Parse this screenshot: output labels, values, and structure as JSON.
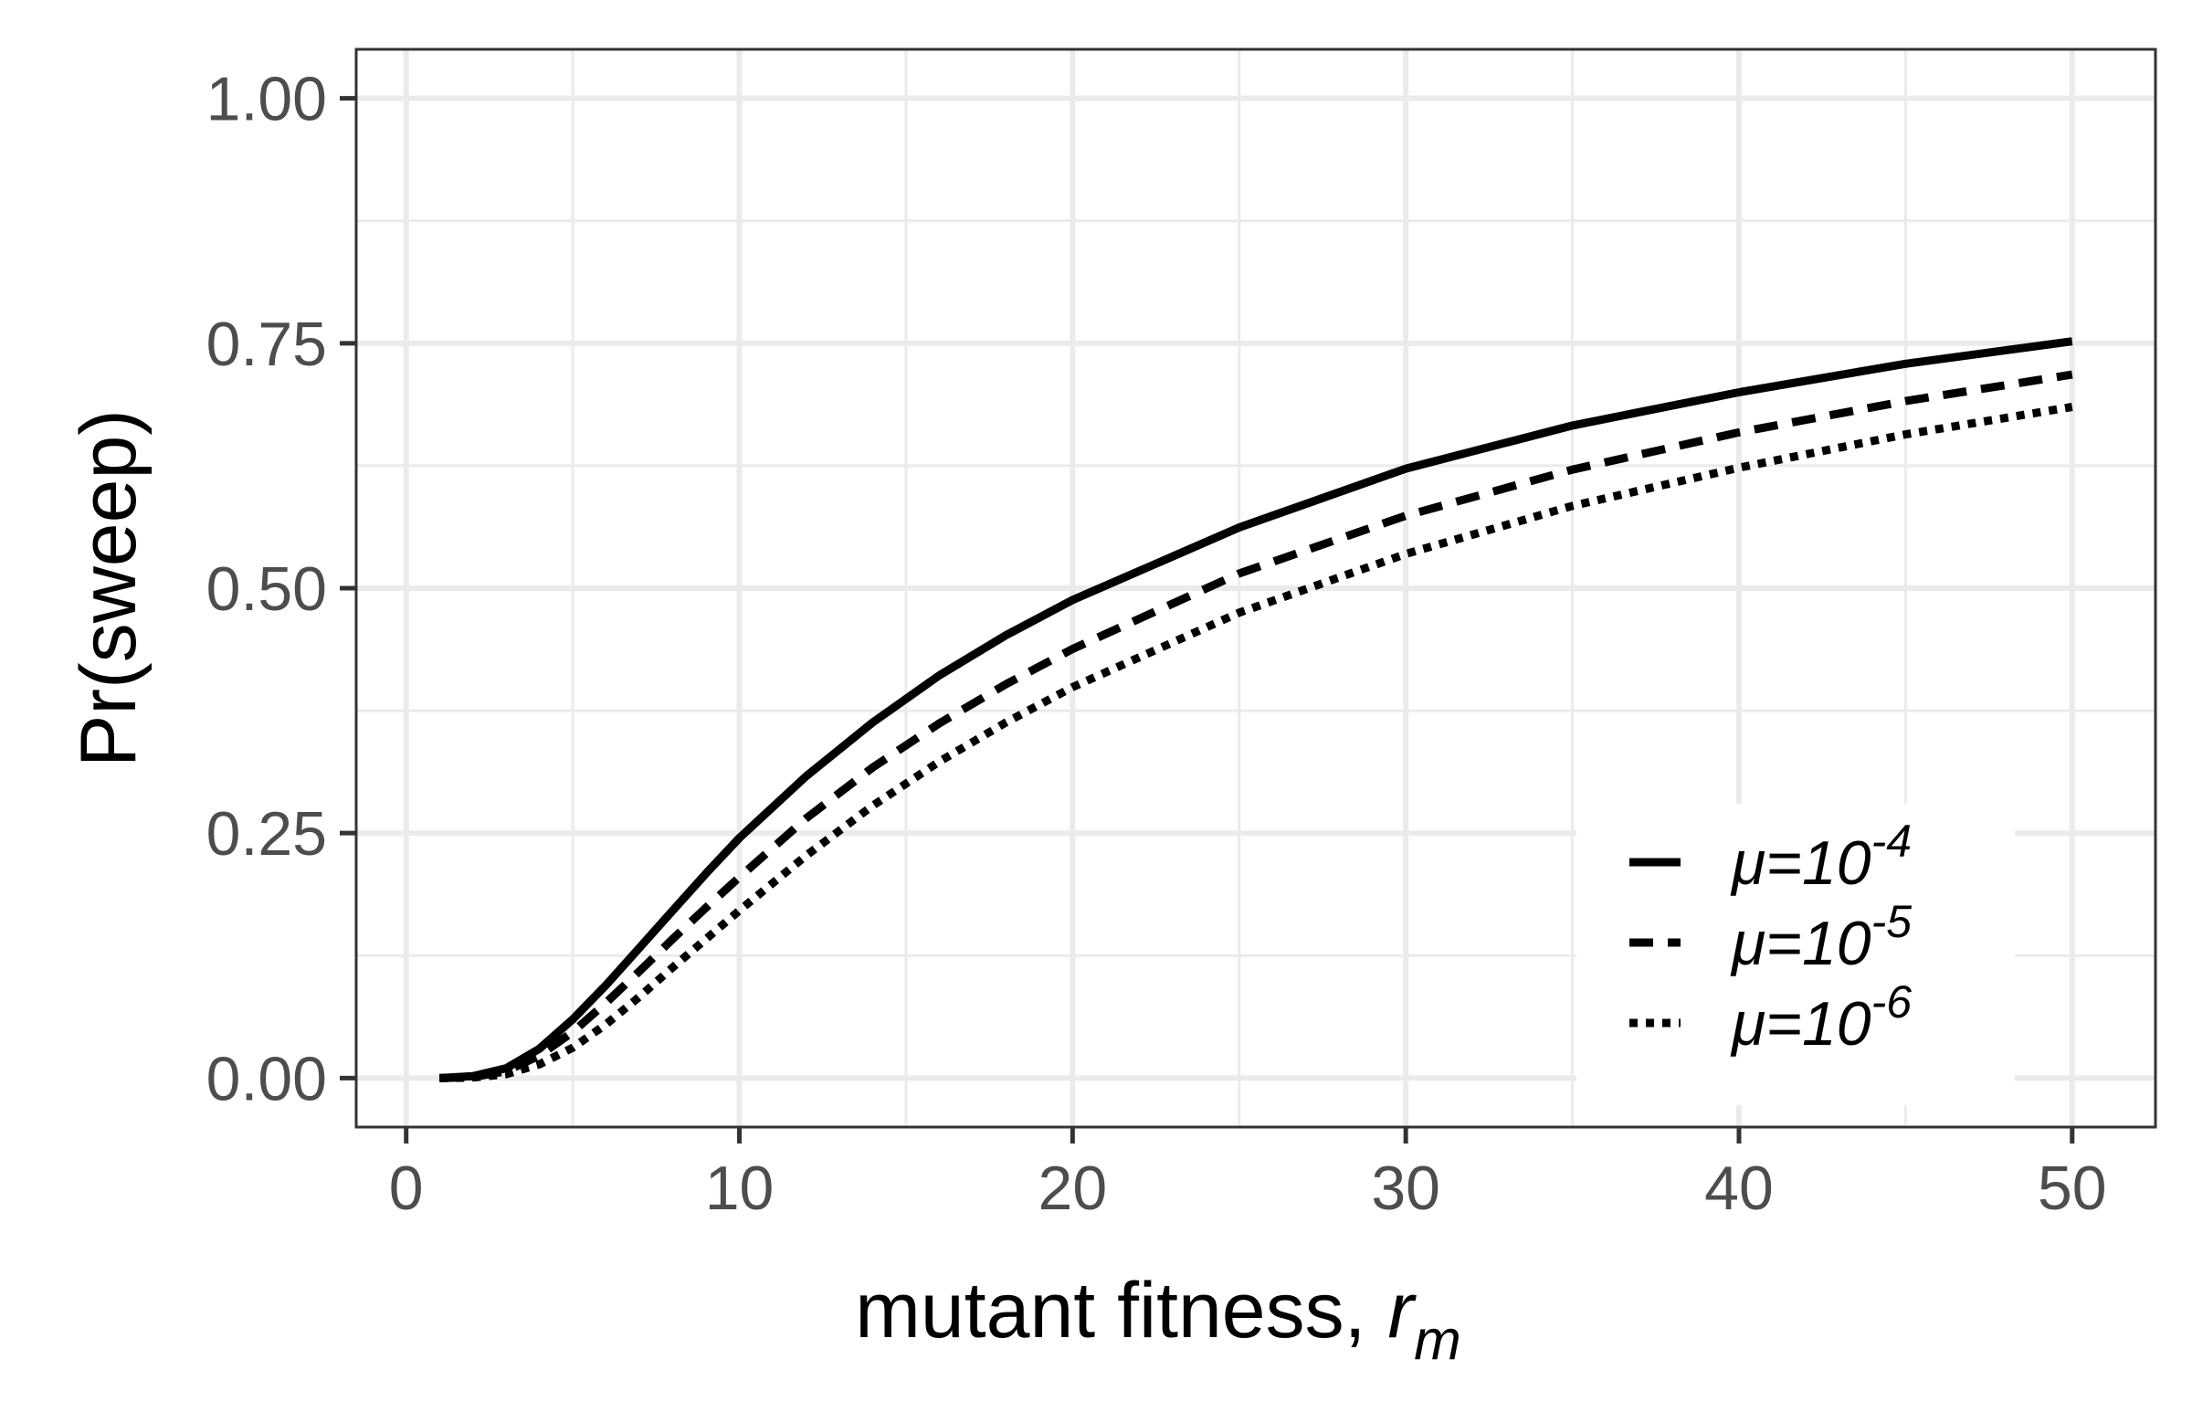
{
  "chart_data": {
    "type": "line",
    "title": "",
    "xlabel": "mutant fitness, ",
    "xlabel_var": "r",
    "xlabel_sub": "m",
    "ylabel": "Pr(sweep)",
    "xlim": [
      -1.5,
      52.5
    ],
    "ylim": [
      -0.05,
      1.05
    ],
    "x_ticks": [
      0,
      10,
      20,
      30,
      40,
      50
    ],
    "x_tick_labels": [
      "0",
      "10",
      "20",
      "30",
      "40",
      "50"
    ],
    "y_ticks": [
      0,
      0.25,
      0.5,
      0.75,
      1.0
    ],
    "y_tick_labels": [
      "0.00",
      "0.25",
      "0.50",
      "0.75",
      "1.00"
    ],
    "grid": true,
    "legend_position": "bottom-right",
    "x": [
      1,
      2,
      3,
      4,
      5,
      6,
      7,
      8,
      9,
      10,
      12,
      14,
      16,
      18,
      20,
      25,
      30,
      35,
      40,
      45,
      50
    ],
    "series": [
      {
        "name": "μ=10-4",
        "label_prefix": "μ=10",
        "label_exponent": "-4",
        "line_style": "solid",
        "values": [
          0.0,
          0.002,
          0.01,
          0.03,
          0.06,
          0.095,
          0.133,
          0.171,
          0.209,
          0.245,
          0.308,
          0.363,
          0.411,
          0.452,
          0.488,
          0.562,
          0.622,
          0.666,
          0.7,
          0.729,
          0.752
        ]
      },
      {
        "name": "μ=10-5",
        "label_prefix": "μ=10",
        "label_exponent": "-5",
        "line_style": "dashed",
        "values": [
          0.0,
          0.001,
          0.007,
          0.023,
          0.047,
          0.077,
          0.109,
          0.142,
          0.174,
          0.205,
          0.265,
          0.317,
          0.362,
          0.402,
          0.438,
          0.515,
          0.574,
          0.621,
          0.659,
          0.691,
          0.718
        ]
      },
      {
        "name": "μ=10-6",
        "label_prefix": "μ=10",
        "label_exponent": "-6",
        "line_style": "dotted",
        "values": [
          0.0,
          0.0005,
          0.004,
          0.014,
          0.031,
          0.055,
          0.083,
          0.113,
          0.142,
          0.171,
          0.227,
          0.278,
          0.323,
          0.363,
          0.399,
          0.475,
          0.535,
          0.584,
          0.623,
          0.657,
          0.685
        ]
      }
    ],
    "colors": {
      "line": "#000000",
      "grid": "#ebebeb",
      "panel_border": "#333333",
      "tick_label": "#4d4d4d",
      "background": "#ffffff"
    }
  }
}
